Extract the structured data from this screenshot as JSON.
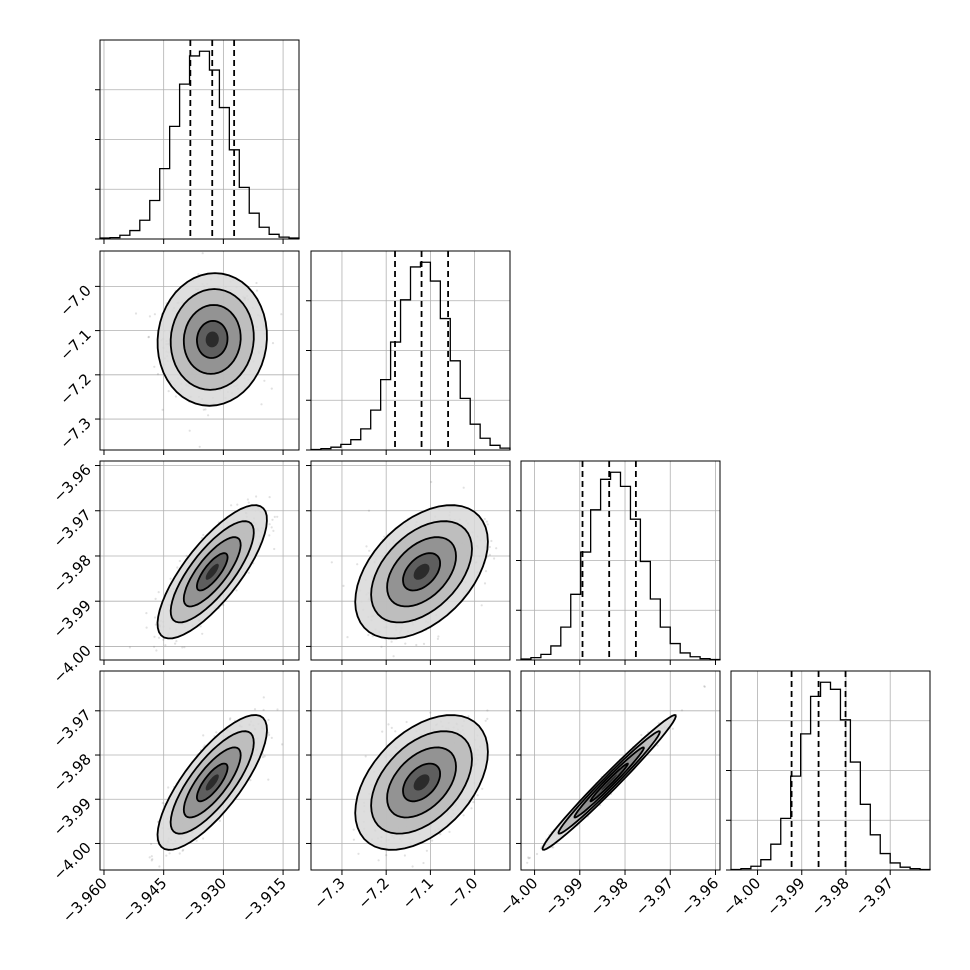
{
  "chart_data": {
    "type": "corner",
    "grid": true,
    "colors": {
      "line": "#000000",
      "grid": "#b0b0b0",
      "points": "#777777"
    },
    "parameters": [
      {
        "range": [
          -3.961,
          -3.911
        ],
        "median": -3.9328,
        "quantiles": [
          -3.9383,
          -3.9328,
          -3.9273
        ],
        "ticks": [
          "−3.960",
          "−3.945",
          "−3.930",
          "−3.915"
        ]
      },
      {
        "range": [
          -7.37,
          -6.92
        ],
        "median": -7.12,
        "quantiles": [
          -7.18,
          -7.12,
          -7.06
        ],
        "ticks": [
          "−7.3",
          "−7.2",
          "−7.1",
          "−7.0"
        ]
      },
      {
        "range": [
          -4.003,
          -3.959
        ],
        "median": -3.9835,
        "quantiles": [
          -3.9894,
          -3.9835,
          -3.9776
        ],
        "ticks": [
          "−4.00",
          "−3.99",
          "−3.98",
          "−3.97",
          "−3.96"
        ]
      },
      {
        "range": [
          -4.006,
          -3.961
        ],
        "median": -3.9862,
        "quantiles": [
          -3.9923,
          -3.9862,
          -3.9801
        ],
        "ticks": [
          "−4.00",
          "−3.99",
          "−3.98",
          "−3.97"
        ]
      }
    ],
    "histograms": [
      [
        2,
        3,
        8,
        18,
        40,
        82,
        150,
        240,
        330,
        390,
        400,
        360,
        280,
        190,
        110,
        55,
        25,
        10,
        4,
        2
      ],
      [
        1,
        3,
        6,
        12,
        22,
        45,
        85,
        150,
        230,
        320,
        390,
        400,
        360,
        280,
        190,
        110,
        55,
        25,
        10,
        4
      ],
      [
        2,
        5,
        12,
        30,
        70,
        140,
        230,
        320,
        385,
        400,
        370,
        300,
        210,
        130,
        70,
        35,
        15,
        7,
        3,
        1
      ],
      [
        1,
        3,
        8,
        22,
        55,
        110,
        200,
        290,
        370,
        400,
        385,
        320,
        230,
        140,
        75,
        35,
        15,
        6,
        3,
        1
      ]
    ],
    "correlations": {
      "1-0": 0.05,
      "2-0": 0.78,
      "3-0": 0.78,
      "2-1": 0.45,
      "3-1": 0.45,
      "3-2": 0.985
    }
  }
}
